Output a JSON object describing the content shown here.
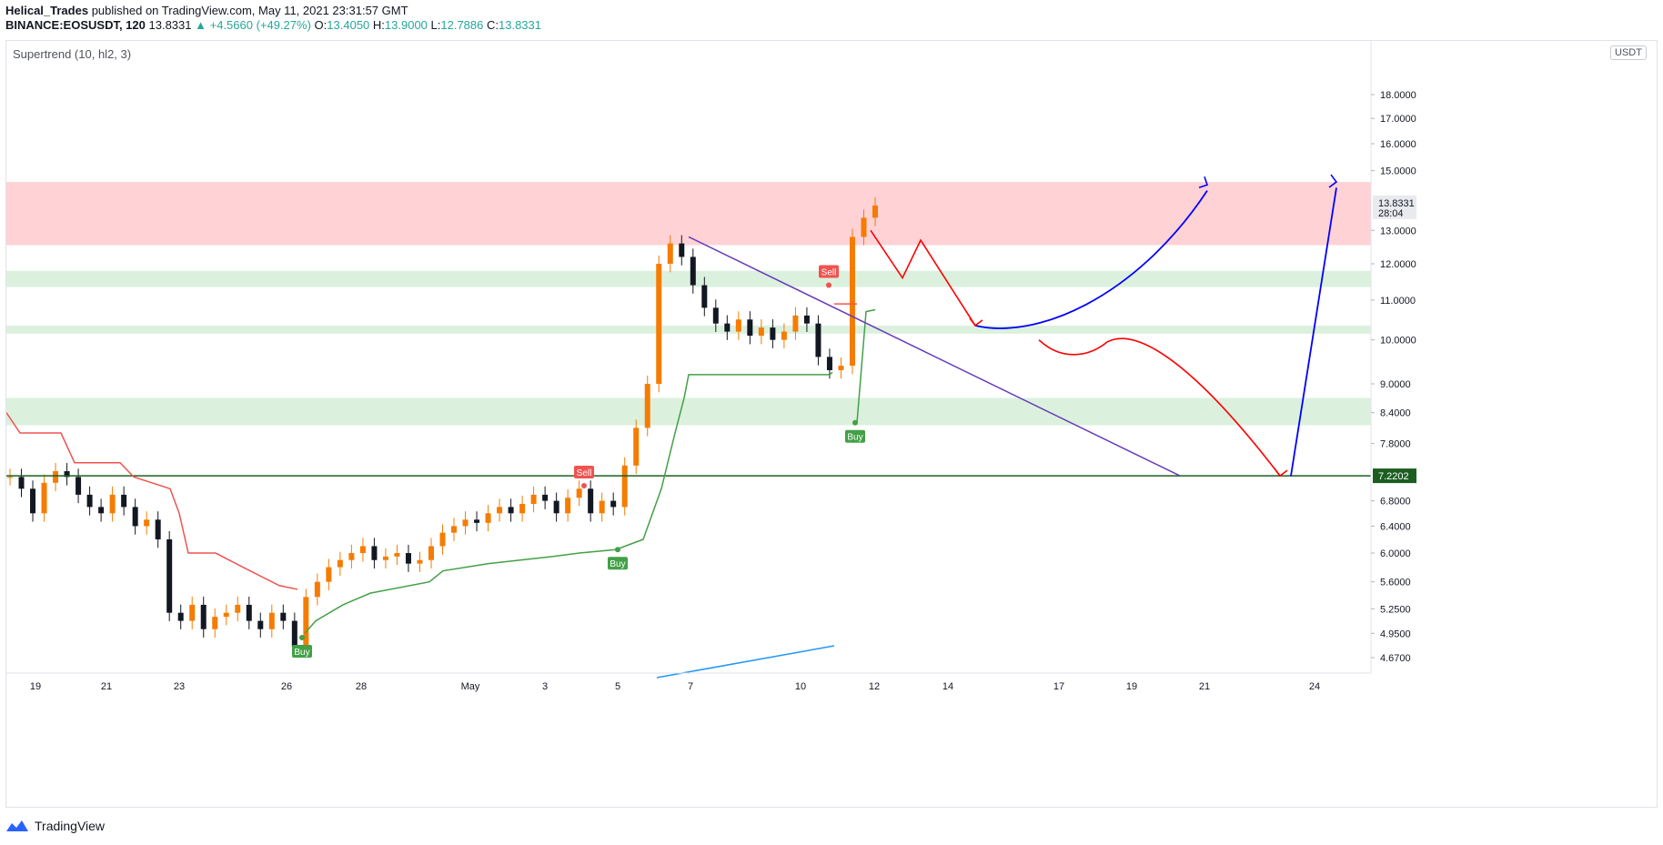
{
  "header": {
    "author": "Helical_Trades",
    "published": "published on TradingView.com, May 11, 2021 23:31:57 GMT",
    "symbol": "BINANCE:EOSUSDT, 120",
    "last": "13.8331",
    "change": "▲ +4.5660 (+49.27%)",
    "o_label": "O:",
    "o": "13.4050",
    "h_label": "H:",
    "h": "13.9000",
    "l_label": "L:",
    "l": "12.7886",
    "c_label": "C:",
    "c": "13.8331"
  },
  "indicator_label": "Supertrend (10, hl2, 3)",
  "unit": "USDT",
  "footer": {
    "brand": "TradingView"
  },
  "colors": {
    "bull": "#f57c00",
    "bear": "#131722",
    "resistance": "#ffcdd2",
    "support": "#d7efda",
    "st_up": "#43a047",
    "st_down": "#ef5350",
    "trendline": "#673ab7",
    "path_red": "#ff0000",
    "path_blue": "#0000ff",
    "hline": "#1b5e20",
    "ema": "#2196f3"
  },
  "chart_data": {
    "type": "candlestick",
    "price_range": [
      4.5,
      21.0
    ],
    "y_scale": "log",
    "y_ticks": [
      "4.6700",
      "4.9500",
      "5.2500",
      "5.6000",
      "6.0000",
      "6.4000",
      "6.8000",
      "7.8000",
      "8.4000",
      "9.0000",
      "10.0000",
      "11.0000",
      "12.0000",
      "13.0000",
      "15.0000",
      "16.0000",
      "17.0000",
      "18.0000"
    ],
    "x_ticks": [
      "19",
      "21",
      "23",
      "26",
      "28",
      "May",
      "3",
      "5",
      "7",
      "10",
      "12",
      "14",
      "17",
      "19",
      "21",
      "24"
    ],
    "last_price_label": "13.8331",
    "countdown_label": "28:04",
    "hline_label": "7.2202",
    "hline_price": 7.2202,
    "zones": [
      {
        "kind": "resistance",
        "low": 12.55,
        "high": 14.6
      },
      {
        "kind": "support",
        "low": 11.35,
        "high": 11.8
      },
      {
        "kind": "support",
        "low": 10.15,
        "high": 10.35
      },
      {
        "kind": "support",
        "low": 8.15,
        "high": 8.7
      }
    ],
    "signals": [
      {
        "label": "Sell",
        "date": "Apr 30",
        "price": 7.05
      },
      {
        "label": "Buy",
        "date": "May 4",
        "price": 6.05
      },
      {
        "label": "Sell",
        "date": "May 10",
        "price": 11.4
      },
      {
        "label": "Buy",
        "date": "May 11",
        "price": 8.2
      },
      {
        "label": "Buy",
        "date": "Apr 25",
        "price": 4.9
      }
    ],
    "series_close": [
      7.2,
      7.0,
      6.6,
      7.1,
      7.3,
      7.2,
      6.9,
      6.7,
      6.6,
      6.9,
      6.7,
      6.4,
      6.5,
      6.2,
      5.2,
      5.1,
      5.3,
      5.0,
      5.15,
      5.2,
      5.3,
      5.1,
      5.0,
      5.2,
      5.1,
      4.8,
      5.4,
      5.6,
      5.8,
      5.9,
      6.0,
      6.1,
      5.9,
      5.95,
      6.0,
      5.85,
      5.9,
      6.1,
      6.3,
      6.4,
      6.5,
      6.45,
      6.6,
      6.7,
      6.6,
      6.75,
      6.9,
      6.8,
      6.6,
      6.85,
      7.0,
      6.6,
      6.8,
      6.7,
      7.4,
      8.1,
      9.0,
      12.0,
      12.6,
      12.2,
      11.4,
      10.8,
      10.4,
      10.2,
      10.5,
      10.1,
      10.3,
      10.0,
      10.2,
      10.6,
      10.4,
      9.6,
      9.3,
      9.4,
      12.8,
      13.4,
      13.8
    ]
  }
}
